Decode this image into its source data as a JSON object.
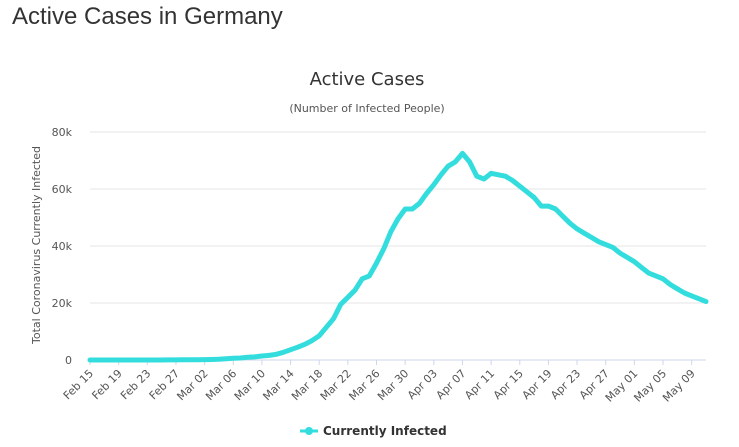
{
  "page": {
    "title": "Active Cases in Germany"
  },
  "colors": {
    "series": "#33dddd",
    "grid": "#e6e6e6",
    "text": "#333333"
  },
  "chart_data": {
    "type": "line",
    "title": "Active Cases",
    "subtitle": "(Number of Infected People)",
    "xlabel": "",
    "ylabel": "Total Coronavirus Currently Infected",
    "ylim": [
      0,
      80000
    ],
    "yticks": [
      0,
      20000,
      40000,
      60000,
      80000
    ],
    "ytick_labels": [
      "0",
      "20k",
      "40k",
      "60k",
      "80k"
    ],
    "x_tick_labels": [
      "Feb 15",
      "Feb 19",
      "Feb 23",
      "Feb 27",
      "Mar 02",
      "Mar 06",
      "Mar 10",
      "Mar 14",
      "Mar 18",
      "Mar 22",
      "Mar 26",
      "Mar 30",
      "Apr 03",
      "Apr 07",
      "Apr 11",
      "Apr 15",
      "Apr 19",
      "Apr 23",
      "Apr 27",
      "May 01",
      "May 05",
      "May 09"
    ],
    "grid": true,
    "legend": "bottom-center",
    "series": [
      {
        "name": "Currently Infected",
        "color": "#33dddd",
        "x": [
          "Feb 15",
          "Feb 16",
          "Feb 17",
          "Feb 18",
          "Feb 19",
          "Feb 20",
          "Feb 21",
          "Feb 22",
          "Feb 23",
          "Feb 24",
          "Feb 25",
          "Feb 26",
          "Feb 27",
          "Feb 28",
          "Feb 29",
          "Mar 01",
          "Mar 02",
          "Mar 03",
          "Mar 04",
          "Mar 05",
          "Mar 06",
          "Mar 07",
          "Mar 08",
          "Mar 09",
          "Mar 10",
          "Mar 11",
          "Mar 12",
          "Mar 13",
          "Mar 14",
          "Mar 15",
          "Mar 16",
          "Mar 17",
          "Mar 18",
          "Mar 19",
          "Mar 20",
          "Mar 21",
          "Mar 22",
          "Mar 23",
          "Mar 24",
          "Mar 25",
          "Mar 26",
          "Mar 27",
          "Mar 28",
          "Mar 29",
          "Mar 30",
          "Mar 31",
          "Apr 01",
          "Apr 02",
          "Apr 03",
          "Apr 04",
          "Apr 05",
          "Apr 06",
          "Apr 07",
          "Apr 08",
          "Apr 09",
          "Apr 10",
          "Apr 11",
          "Apr 12",
          "Apr 13",
          "Apr 14",
          "Apr 15",
          "Apr 16",
          "Apr 17",
          "Apr 18",
          "Apr 19",
          "Apr 20",
          "Apr 21",
          "Apr 22",
          "Apr 23",
          "Apr 24",
          "Apr 25",
          "Apr 26",
          "Apr 27",
          "Apr 28",
          "Apr 29",
          "Apr 30",
          "May 01",
          "May 02",
          "May 03",
          "May 04",
          "May 05",
          "May 06",
          "May 07",
          "May 08",
          "May 09",
          "May 10",
          "May 11"
        ],
        "values": [
          14,
          14,
          14,
          14,
          14,
          14,
          14,
          14,
          14,
          14,
          14,
          20,
          40,
          60,
          70,
          110,
          140,
          180,
          230,
          450,
          600,
          700,
          950,
          1100,
          1400,
          1600,
          2000,
          2700,
          3600,
          4500,
          5500,
          6800,
          8500,
          11500,
          14500,
          19500,
          22000,
          24500,
          28500,
          29500,
          34000,
          39000,
          45000,
          49500,
          53000,
          53000,
          55000,
          58500,
          61500,
          65000,
          68000,
          69500,
          72500,
          69500,
          64500,
          63500,
          65500,
          65000,
          64500,
          63000,
          61000,
          59000,
          57000,
          54000,
          54000,
          53000,
          50500,
          48000,
          46000,
          44500,
          43000,
          41500,
          40500,
          39500,
          37500,
          36000,
          34500,
          32500,
          30500,
          29500,
          28500,
          26500,
          25000,
          23500,
          22500,
          21500,
          20500
        ]
      }
    ]
  }
}
